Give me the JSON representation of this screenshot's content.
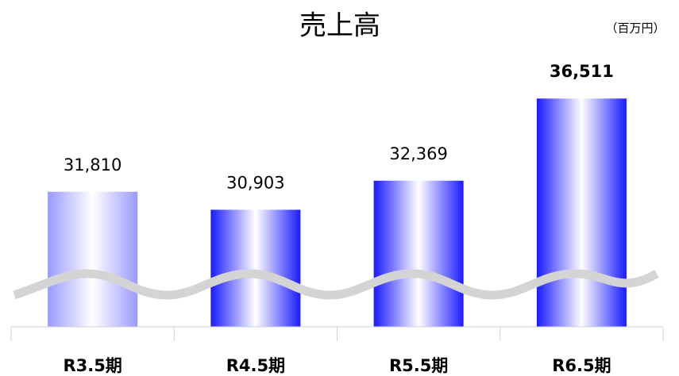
{
  "chart_data": {
    "type": "bar",
    "title": "売上高",
    "unit": "（百万円）",
    "categories": [
      "R3.5期",
      "R4.5期",
      "R5.5期",
      "R6.5期"
    ],
    "values": [
      31810,
      30903,
      32369,
      36511
    ],
    "value_labels": [
      "31,810",
      "30,903",
      "32,369",
      "36,511"
    ],
    "colors": [
      "#9a9aff",
      "#1a1aff",
      "#1a1aff",
      "#1a1aff"
    ],
    "bold_label_index": 3,
    "ylim": [
      25000,
      38000
    ]
  }
}
